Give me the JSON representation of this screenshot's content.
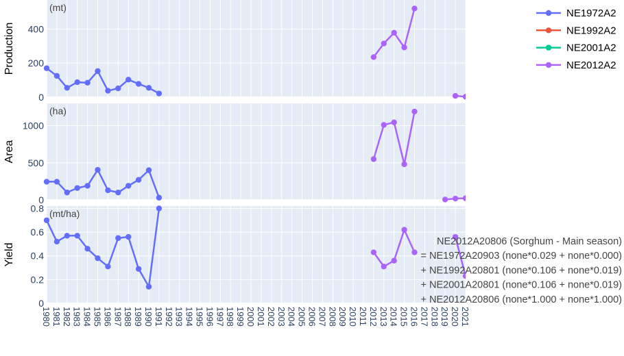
{
  "chart_data": {
    "type": "line",
    "years": [
      1980,
      1981,
      1982,
      1983,
      1984,
      1985,
      1986,
      1987,
      1988,
      1989,
      1990,
      1991,
      1992,
      1993,
      1994,
      1995,
      1996,
      1997,
      1998,
      1999,
      2000,
      2001,
      2002,
      2003,
      2004,
      2005,
      2006,
      2007,
      2008,
      2009,
      2010,
      2011,
      2012,
      2013,
      2014,
      2015,
      2016,
      2017,
      2018,
      2019,
      2020,
      2021
    ],
    "panels": [
      {
        "key": "production",
        "ylabel": "Production",
        "unit": "(mt)",
        "ylim": [
          0,
          570
        ],
        "yticks": [
          0,
          200,
          400
        ],
        "series": [
          {
            "name": "NE1972A2",
            "color": "#636efa",
            "points": [
              [
                1980,
                170
              ],
              [
                1981,
                125
              ],
              [
                1982,
                55
              ],
              [
                1983,
                88
              ],
              [
                1984,
                85
              ],
              [
                1985,
                153
              ],
              [
                1986,
                38
              ],
              [
                1987,
                52
              ],
              [
                1988,
                103
              ],
              [
                1989,
                78
              ],
              [
                1990,
                55
              ],
              [
                1991,
                22
              ]
            ]
          },
          {
            "name": "NE2012A2",
            "color": "#ab63fa",
            "points": [
              [
                2012,
                235
              ],
              [
                2013,
                315
              ],
              [
                2014,
                378
              ],
              [
                2015,
                292
              ],
              [
                2016,
                520
              ]
            ]
          },
          {
            "name": "NE2012A2",
            "color": "#ab63fa",
            "points": [
              [
                2020,
                8
              ],
              [
                2021,
                3
              ]
            ]
          }
        ]
      },
      {
        "key": "area",
        "ylabel": "Area",
        "unit": "(ha)",
        "ylim": [
          0,
          1300
        ],
        "yticks": [
          0,
          500,
          1000
        ],
        "series": [
          {
            "name": "NE1972A2",
            "color": "#636efa",
            "points": [
              [
                1980,
                245
              ],
              [
                1981,
                245
              ],
              [
                1982,
                100
              ],
              [
                1983,
                160
              ],
              [
                1984,
                190
              ],
              [
                1985,
                405
              ],
              [
                1986,
                130
              ],
              [
                1987,
                100
              ],
              [
                1988,
                190
              ],
              [
                1989,
                270
              ],
              [
                1990,
                400
              ],
              [
                1991,
                30
              ]
            ]
          },
          {
            "name": "NE2012A2",
            "color": "#ab63fa",
            "points": [
              [
                2012,
                550
              ],
              [
                2013,
                1010
              ],
              [
                2014,
                1045
              ],
              [
                2015,
                480
              ],
              [
                2016,
                1190
              ]
            ]
          },
          {
            "name": "NE2012A2",
            "color": "#ab63fa",
            "points": [
              [
                2019,
                5
              ],
              [
                2020,
                18
              ],
              [
                2021,
                22
              ]
            ]
          }
        ]
      },
      {
        "key": "yield",
        "ylabel": "Yield",
        "unit": "(mt/ha)",
        "ylim": [
          0,
          0.82
        ],
        "yticks": [
          0,
          0.2,
          0.4,
          0.6,
          0.8
        ],
        "series": [
          {
            "name": "NE1972A2",
            "color": "#636efa",
            "points": [
              [
                1980,
                0.7
              ],
              [
                1981,
                0.52
              ],
              [
                1982,
                0.57
              ],
              [
                1983,
                0.57
              ],
              [
                1984,
                0.46
              ],
              [
                1985,
                0.38
              ],
              [
                1986,
                0.31
              ],
              [
                1987,
                0.55
              ],
              [
                1988,
                0.56
              ],
              [
                1989,
                0.29
              ],
              [
                1990,
                0.14
              ],
              [
                1991,
                0.8
              ]
            ]
          },
          {
            "name": "NE2012A2",
            "color": "#ab63fa",
            "points": [
              [
                2012,
                0.43
              ],
              [
                2013,
                0.31
              ],
              [
                2014,
                0.36
              ],
              [
                2015,
                0.62
              ],
              [
                2016,
                0.43
              ]
            ]
          },
          {
            "name": "NE2012A2",
            "color": "#ab63fa",
            "points": [
              [
                2020,
                0.56
              ],
              [
                2021,
                0.23
              ]
            ]
          }
        ]
      }
    ],
    "legend": [
      {
        "name": "NE1972A2",
        "color": "#636efa"
      },
      {
        "name": "NE1992A2",
        "color": "#ef553b"
      },
      {
        "name": "NE2001A2",
        "color": "#00cc96"
      },
      {
        "name": "NE2012A2",
        "color": "#ab63fa"
      }
    ],
    "legend_position": "top-right",
    "annotation": [
      "NE2012A20806 (Sorghum - Main season)",
      "= NE1972A20903 (none*0.029 + none*0.000)",
      "+ NE1992A20801 (none*0.106 + none*0.019)",
      "+ NE2001A20801 (none*0.106 + none*0.019)",
      "+ NE2012A20806 (none*1.000 + none*1.000)"
    ],
    "grid": true,
    "background_color": "#e5ecf6"
  }
}
